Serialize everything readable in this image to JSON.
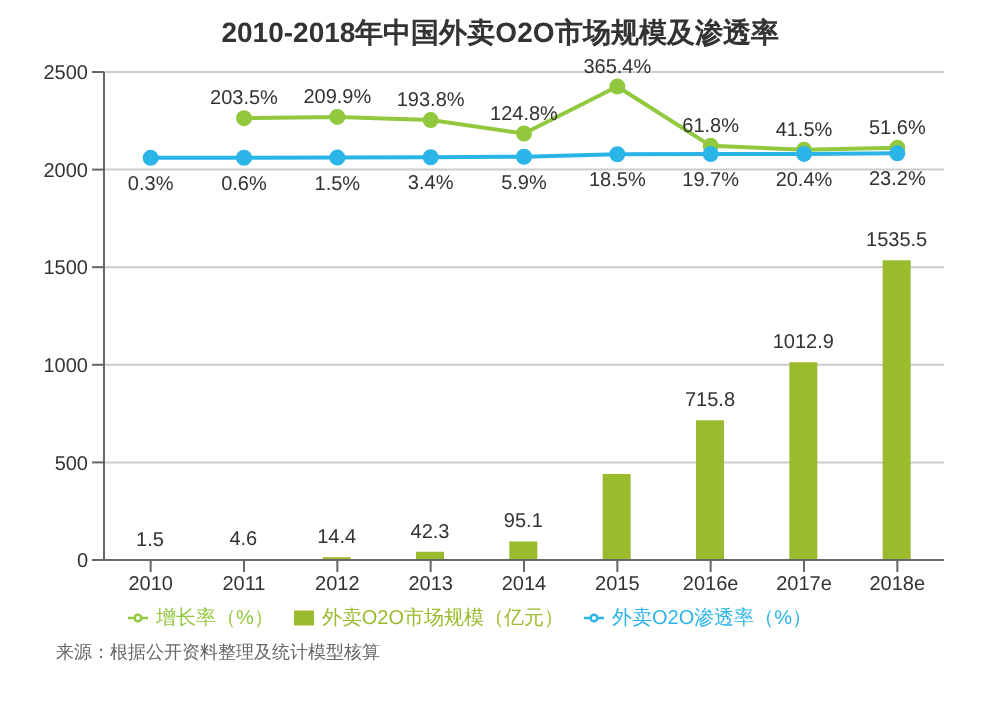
{
  "chart_data": {
    "type": "bar",
    "title": "2010-2018年中国外卖O2O市场规模及渗透率",
    "categories": [
      "2010",
      "2011",
      "2012",
      "2013",
      "2014",
      "2015",
      "2016e",
      "2017e",
      "2018e"
    ],
    "ylim": [
      0,
      2500
    ],
    "yticks": [
      0,
      500,
      1000,
      1500,
      2000,
      2500
    ],
    "y2lim": [
      -2060,
      440
    ],
    "grid": "y",
    "legend": "bottom",
    "marker": "circle",
    "series": [
      {
        "name": "外卖O2O市场规模（亿元）",
        "color": "#9bbb2f",
        "values": [
          1.5,
          4.6,
          14.4,
          42.3,
          95.1,
          440,
          715.8,
          1012.9,
          1535.5
        ],
        "value_labels": [
          "1.5",
          "4.6",
          "14.4",
          "42.3",
          "95.1",
          null,
          "715.8",
          "1012.9",
          "1535.5"
        ]
      },
      {
        "name": "增长率（%）",
        "type": "line",
        "axis": "y2",
        "color": "#92c83e",
        "values": [
          null,
          203.5,
          209.9,
          193.8,
          124.8,
          365.4,
          61.8,
          41.5,
          51.6
        ],
        "value_labels": [
          null,
          "203.5%",
          "209.9%",
          "193.8%",
          "124.8%",
          "365.4%",
          "61.8%",
          "41.5%",
          "51.6%"
        ]
      },
      {
        "name": "外卖O2O渗透率（%）",
        "type": "line",
        "axis": "y2",
        "color": "#2ab4e8",
        "values": [
          0.3,
          0.6,
          1.5,
          3.4,
          5.9,
          18.5,
          19.7,
          20.4,
          23.2
        ],
        "value_labels": [
          "0.3%",
          "0.6%",
          "1.5%",
          "3.4%",
          "5.9%",
          "18.5%",
          "19.7%",
          "20.4%",
          "23.2%"
        ]
      }
    ],
    "annotations": [
      "来源：根据公开资料整理及统计模型核算"
    ]
  }
}
